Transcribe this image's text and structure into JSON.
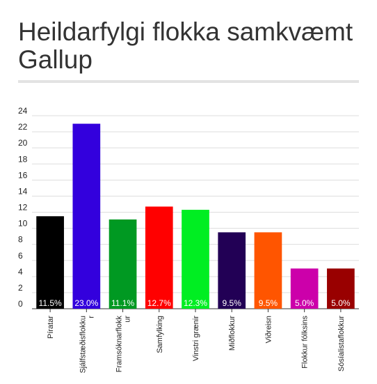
{
  "chart_data": {
    "type": "bar",
    "title": "Heildarfylgi flokka samkvæmt Gallup",
    "categories": [
      "Píratar",
      "Sjálfstæðisflokku\nr",
      "Framsóknarflokk\nur",
      "Samfylking",
      "Vinstri grænir",
      "Miðflokkur",
      "Viðreisn",
      "Flokkur fólksins",
      "Sósíalistaflokkur"
    ],
    "values": [
      11.5,
      23.0,
      11.1,
      12.7,
      12.3,
      9.5,
      9.5,
      5.0,
      5.0
    ],
    "value_labels": [
      "11.5%",
      "23.0%",
      "11.1%",
      "12.7%",
      "12.3%",
      "9.5%",
      "9.5%",
      "5.0%",
      "5.0%"
    ],
    "colors": [
      "#000000",
      "#3300dd",
      "#009922",
      "#ff0000",
      "#00ee22",
      "#220055",
      "#ff5500",
      "#cc00aa",
      "#990000"
    ],
    "yticks": [
      "0",
      "2",
      "4",
      "6",
      "8",
      "10",
      "12",
      "14",
      "16",
      "18",
      "20",
      "22",
      "24"
    ],
    "ylim": [
      0,
      24
    ],
    "grid": true,
    "legend": "none"
  }
}
